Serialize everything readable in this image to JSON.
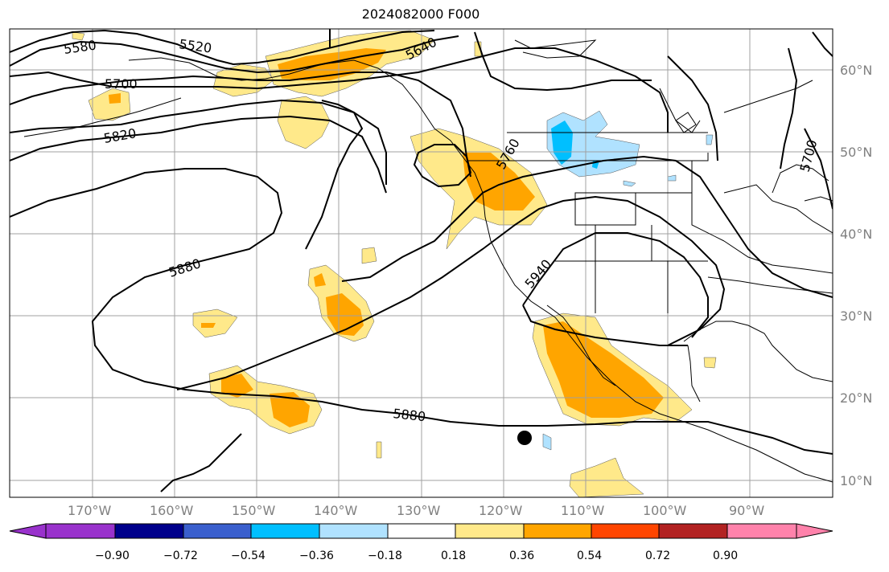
{
  "title": "2024082000 F000",
  "latitude_labels": [
    "60°N",
    "50°N",
    "40°N",
    "30°N",
    "20°N",
    "10°N"
  ],
  "longitude_labels": [
    "170°W",
    "160°W",
    "150°W",
    "140°W",
    "130°W",
    "120°W",
    "110°W",
    "100°W",
    "90°W"
  ],
  "contour_labels": [
    "5580",
    "5520",
    "5640",
    "5700",
    "5820",
    "5760",
    "5880",
    "5940",
    "5880",
    "5700"
  ],
  "colorbar": {
    "tick_labels": [
      "−0.90",
      "−0.72",
      "−0.54",
      "−0.36",
      "−0.18",
      "0.18",
      "0.36",
      "0.54",
      "0.72",
      "0.90"
    ],
    "colors": [
      "#9932cc",
      "#00008b",
      "#3a5fcd",
      "#00bfff",
      "#b0e2ff",
      "#ffffff",
      "#ffe98a",
      "#ffa500",
      "#ff4500",
      "#b22222",
      "#ff82ab"
    ]
  },
  "marker": {
    "description_color": "#000000"
  }
}
